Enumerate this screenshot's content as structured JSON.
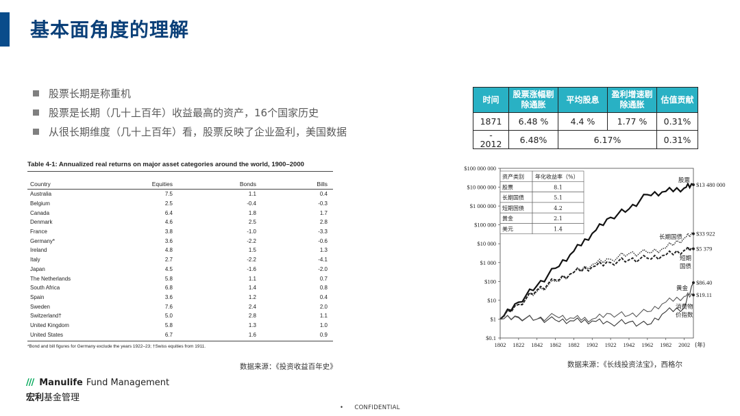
{
  "slide": {
    "title": "基本面角度的理解",
    "bullets": [
      "股票长期是称重机",
      "股票是长期（几十上百年）收益最高的资产，16个国家历史",
      "从很长期维度（几十上百年）看，股票反映了企业盈利，美国数据"
    ],
    "source_left": "数据来源：《投资收益百年史》",
    "source_right": "数据来源：《长线投资法宝》，西格尔",
    "brand_en_1": "Manulife",
    "brand_en_2": "Fund Management",
    "brand_cn_1": "宏利",
    "brand_cn_2": "基金管理",
    "confidential_bullet": "•",
    "confidential": "CONFIDENTIAL",
    "colors": {
      "title": "#0a3f78",
      "accent": "#0a4c8b",
      "table_header": "#29b1c4",
      "brand": "#00a758"
    }
  },
  "table41": {
    "caption": "Table 4-1: Annualized real returns on major asset categories around the world, 1900–2000",
    "headers": [
      "Country",
      "Equities",
      "Bonds",
      "Bills"
    ],
    "rows": [
      [
        "Australia",
        "7.5",
        "1.1",
        "0.4"
      ],
      [
        "Belgium",
        "2.5",
        "-0.4",
        "-0.3"
      ],
      [
        "Canada",
        "6.4",
        "1.8",
        "1.7"
      ],
      [
        "Denmark",
        "4.6",
        "2.5",
        "2.8"
      ],
      [
        "France",
        "3.8",
        "-1.0",
        "-3.3"
      ],
      [
        "Germany*",
        "3.6",
        "-2.2",
        "-0.6"
      ],
      [
        "Ireland",
        "4.8",
        "1.5",
        "1.3"
      ],
      [
        "Italy",
        "2.7",
        "-2.2",
        "-4.1"
      ],
      [
        "Japan",
        "4.5",
        "-1.6",
        "-2.0"
      ],
      [
        "The Netherlands",
        "5.8",
        "1.1",
        "0.7"
      ],
      [
        "South Africa",
        "6.8",
        "1.4",
        "0.8"
      ],
      [
        "Spain",
        "3.6",
        "1.2",
        "0.4"
      ],
      [
        "Sweden",
        "7.6",
        "2.4",
        "2.0"
      ],
      [
        "Switzerland†",
        "5.0",
        "2.8",
        "1.1"
      ],
      [
        "United Kingdom",
        "5.8",
        "1.3",
        "1.0"
      ],
      [
        "United States",
        "6.7",
        "1.6",
        "0.9"
      ]
    ],
    "footnote": "*Bond and bill figures for Germany exclude the years 1922–23;  †Swiss equities from 1911."
  },
  "table2": {
    "headers": [
      "时间",
      "股票涨幅剔除通胀",
      "平均股息",
      "盈利增速剔除通胀",
      "估值贡献"
    ],
    "year_start": "1871",
    "year_dash": "-",
    "year_end": "2012",
    "row1": [
      "6.48 %",
      "4.4 %",
      "1.77 %",
      "0.31%"
    ],
    "row2": [
      "6.48%",
      "6.17%",
      "0.31%"
    ]
  },
  "chart_data": {
    "type": "line",
    "y_scale": "log",
    "ylim": [
      0.1,
      100000000
    ],
    "xlim": [
      1802,
      2012
    ],
    "y_ticks": [
      "$100 000 000",
      "$10 000 000",
      "$1 000 000",
      "$100 000",
      "$10 000",
      "$1 000",
      "$100",
      "$10",
      "$1",
      "$0.1"
    ],
    "x_ticks": [
      "1802",
      "1822",
      "1842",
      "1862",
      "1882",
      "1902",
      "1922",
      "1942",
      "1962",
      "1982",
      "2002"
    ],
    "x_unit": "(年)",
    "series": [
      {
        "name": "股票",
        "end_label": "$13 480 000",
        "x": [
          1802,
          1822,
          1842,
          1862,
          1882,
          1902,
          1922,
          1942,
          1962,
          1982,
          2002,
          2012
        ],
        "y": [
          1,
          8,
          60,
          500,
          4000,
          35000,
          250000,
          700000,
          4000000,
          6000000,
          9000000,
          13480000
        ]
      },
      {
        "name": "长期国债",
        "end_label": "$33 922",
        "x": [
          1802,
          1822,
          1842,
          1862,
          1882,
          1902,
          1922,
          1942,
          1962,
          1982,
          2002,
          2012
        ],
        "y": [
          1,
          6,
          30,
          100,
          300,
          800,
          1500,
          3000,
          3500,
          6000,
          20000,
          33922
        ]
      },
      {
        "name": "短期国债",
        "end_label": "$5 379",
        "x": [
          1802,
          1822,
          1842,
          1862,
          1882,
          1902,
          1922,
          1942,
          1962,
          1982,
          2002,
          2012
        ],
        "y": [
          1,
          6,
          35,
          120,
          300,
          600,
          1000,
          1400,
          1700,
          2500,
          4500,
          5379
        ]
      },
      {
        "name": "黄金",
        "end_label": "$86.40",
        "x": [
          1802,
          1822,
          1842,
          1862,
          1882,
          1902,
          1922,
          1942,
          1962,
          1982,
          2002,
          2012
        ],
        "y": [
          1,
          1.2,
          1.0,
          0.9,
          0.8,
          0.8,
          0.6,
          0.7,
          0.5,
          2.5,
          4,
          86.4
        ]
      },
      {
        "name": "美元",
        "end_label": "$19.11",
        "x": [
          1802,
          1822,
          1842,
          1862,
          1882,
          1902,
          1922,
          1942,
          1962,
          1982,
          2002,
          2012
        ],
        "y": [
          1,
          1.3,
          1.0,
          1.5,
          1.1,
          1.0,
          1.9,
          1.6,
          2.5,
          8,
          16,
          19.11
        ]
      }
    ],
    "curve_labels": {
      "bonds": "长期国债",
      "bills_1": "短期",
      "bills_2": "国债",
      "cpi_1": "消费物",
      "cpi_2": "价指数"
    },
    "inset_table": {
      "headers": [
        "资产类别",
        "年化收益率（%）"
      ],
      "rows": [
        [
          "股票",
          "8.1"
        ],
        [
          "长期国债",
          "5.1"
        ],
        [
          "短期国债",
          "4.2"
        ],
        [
          "黄金",
          "2.1"
        ],
        [
          "美元",
          "1.4"
        ]
      ]
    }
  }
}
